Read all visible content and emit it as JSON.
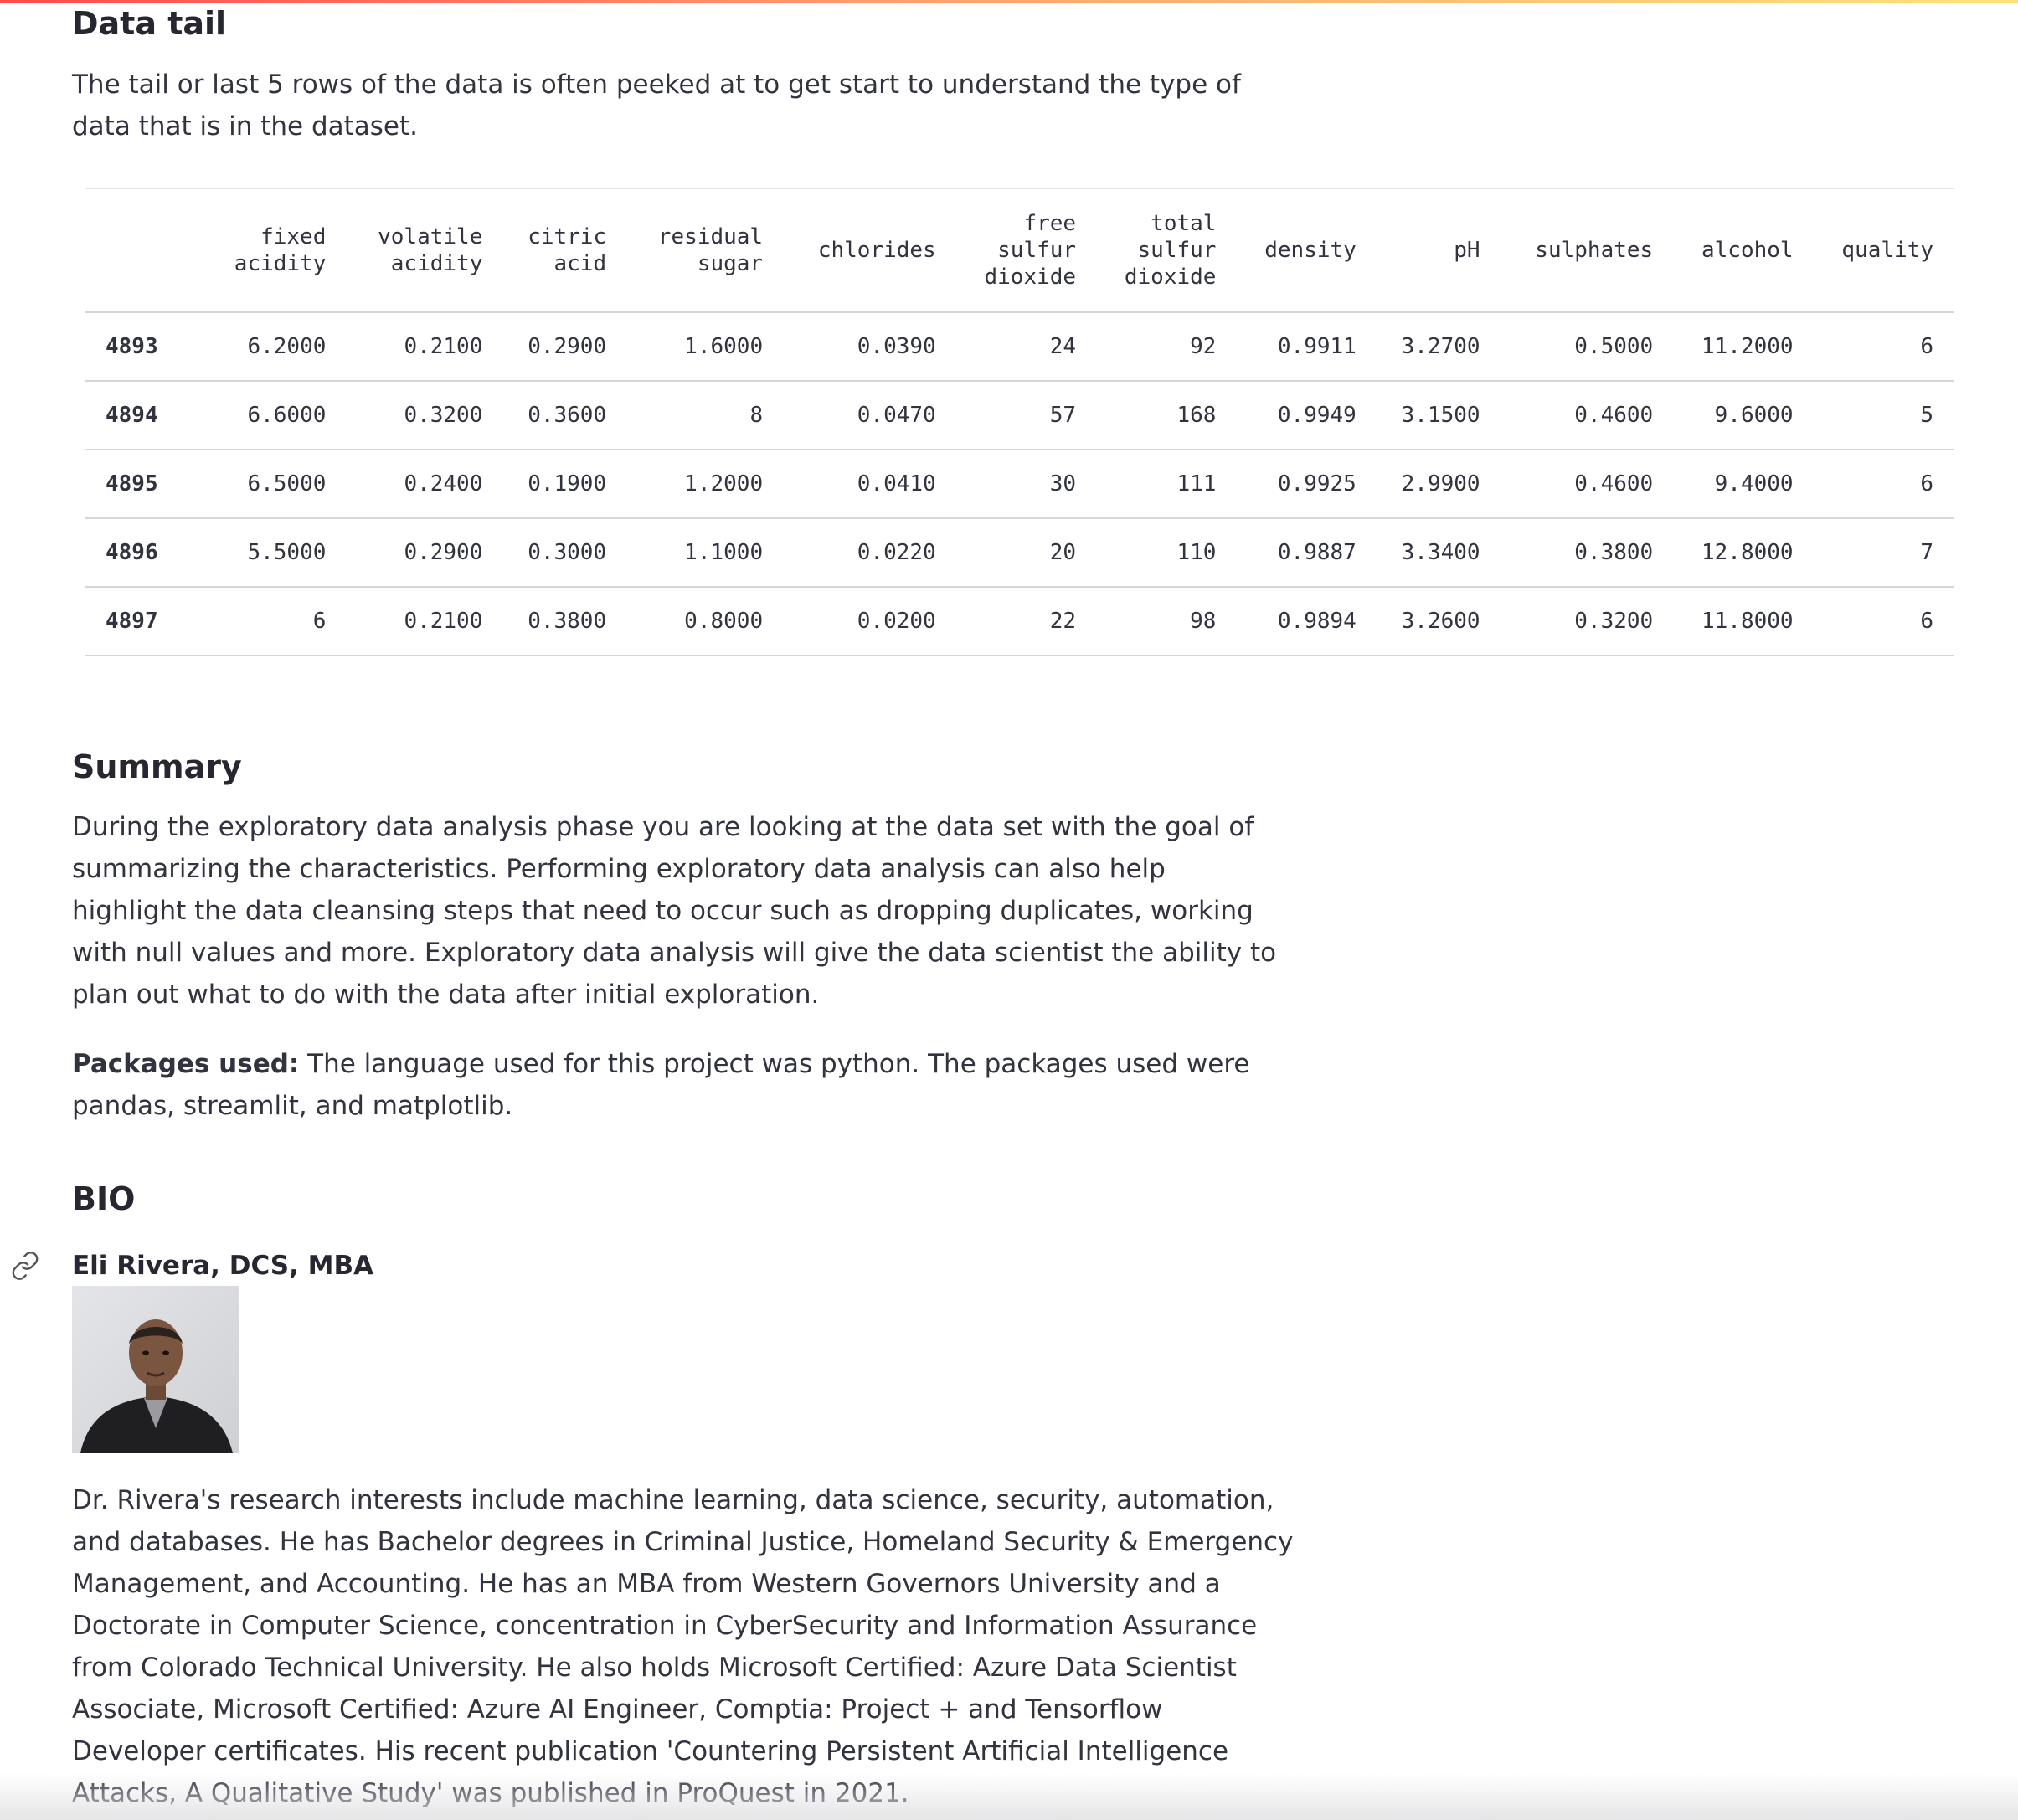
{
  "tail_section": {
    "title": "Data tail",
    "description": "The tail or last 5 rows of the data is often peeked at to get start to understand the type of data that is in the dataset."
  },
  "table": {
    "columns": [
      [
        "fixed",
        "acidity"
      ],
      [
        "volatile",
        "acidity"
      ],
      [
        "citric",
        "acid"
      ],
      [
        "residual",
        "sugar"
      ],
      [
        "chlorides"
      ],
      [
        "free",
        "sulfur",
        "dioxide"
      ],
      [
        "total",
        "sulfur",
        "dioxide"
      ],
      [
        "density"
      ],
      [
        "pH"
      ],
      [
        "sulphates"
      ],
      [
        "alcohol"
      ],
      [
        "quality"
      ]
    ],
    "rows": [
      [
        "4893",
        "6.2000",
        "0.2100",
        "0.2900",
        "1.6000",
        "0.0390",
        "24",
        "92",
        "0.9911",
        "3.2700",
        "0.5000",
        "11.2000",
        "6"
      ],
      [
        "4894",
        "6.6000",
        "0.3200",
        "0.3600",
        "8",
        "0.0470",
        "57",
        "168",
        "0.9949",
        "3.1500",
        "0.4600",
        "9.6000",
        "5"
      ],
      [
        "4895",
        "6.5000",
        "0.2400",
        "0.1900",
        "1.2000",
        "0.0410",
        "30",
        "111",
        "0.9925",
        "2.9900",
        "0.4600",
        "9.4000",
        "6"
      ],
      [
        "4896",
        "5.5000",
        "0.2900",
        "0.3000",
        "1.1000",
        "0.0220",
        "20",
        "110",
        "0.9887",
        "3.3400",
        "0.3800",
        "12.8000",
        "7"
      ],
      [
        "4897",
        "6",
        "0.2100",
        "0.3800",
        "0.8000",
        "0.0200",
        "22",
        "98",
        "0.9894",
        "3.2600",
        "0.3200",
        "11.8000",
        "6"
      ]
    ]
  },
  "summary": {
    "title": "Summary",
    "text": "During the exploratory data analysis phase you are looking at the data set with the goal of summarizing the characteristics. Performing exploratory data analysis can also help highlight the data cleansing steps that need to occur such as dropping duplicates, working with null values and more. Exploratory data analysis will give the data scientist the ability to plan out what to do with the data after initial exploration.",
    "packages_label": "Packages used:",
    "packages_text": " The language used for this project was python. The packages used were pandas, streamlit, and matplotlib."
  },
  "bio": {
    "title": "BIO",
    "name": "Eli Rivera, DCS, MBA",
    "text": "Dr. Rivera's research interests include machine learning, data science, security, automation, and databases. He has Bachelor degrees in Criminal Justice, Homeland Security & Emergency Management, and Accounting. He has an MBA from Western Governors University and a Doctorate in Computer Science, concentration in CyberSecurity and Information Assurance from Colorado Technical University. He also holds Microsoft Certified: Azure Data Scientist Associate, Microsoft Certified: Azure AI Engineer, Comptia: Project + and Tensorflow Developer certificates. His recent publication 'Countering Persistent Artificial Intelligence Attacks, A Qualitative Study' was published in ProQuest in 2021."
  },
  "icons": {
    "anchor": "link-icon",
    "photo": "profile-photo"
  },
  "colors": {
    "text": "#31333f",
    "heading": "#262730",
    "accent_gradient_start": "#ff4b4b",
    "accent_gradient_end": "#ffe37a",
    "table_border": "#d5d5da"
  }
}
